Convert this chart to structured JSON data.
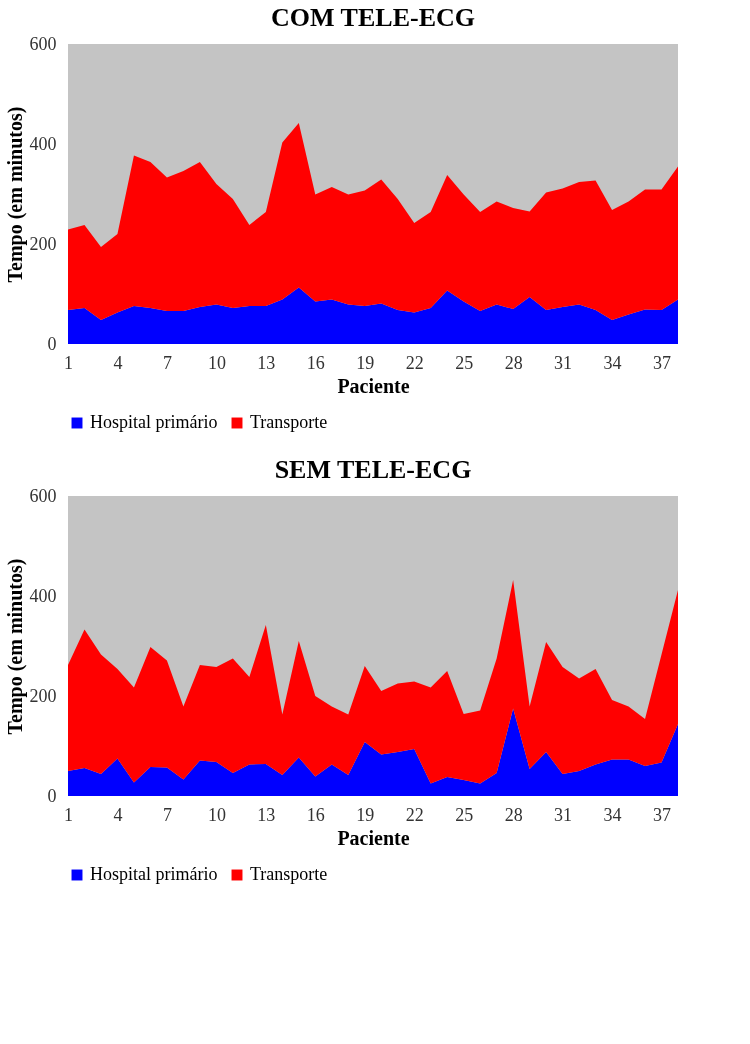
{
  "chart_data": [
    {
      "type": "area",
      "title": "COM TELE-ECG",
      "xlabel": "Paciente",
      "ylabel": "Tempo (em minutos)",
      "categories": [
        "1",
        null,
        null,
        "4",
        null,
        null,
        "7",
        null,
        null,
        "10",
        null,
        null,
        "13",
        null,
        null,
        "16",
        null,
        null,
        "19",
        null,
        null,
        "22",
        null,
        null,
        "25",
        null,
        null,
        "28",
        null,
        null,
        "31",
        null,
        null,
        "34",
        null,
        null,
        "37",
        null
      ],
      "stacked": true,
      "ylim": [
        0,
        600
      ],
      "yticks": [
        0,
        200,
        400,
        600
      ],
      "grid": false,
      "legend": "bottom",
      "series": [
        {
          "name": "Hospital primário",
          "color": "#0000ff",
          "values": [
            68,
            72,
            48,
            63,
            76,
            72,
            66,
            66,
            74,
            79,
            72,
            76,
            76,
            89,
            113,
            85,
            89,
            79,
            76,
            81,
            68,
            63,
            72,
            107,
            85,
            66,
            79,
            70,
            94,
            68,
            74,
            79,
            68,
            48,
            59,
            69,
            68,
            89
          ]
        },
        {
          "name": "Transporte",
          "color": "#ff0000",
          "values": [
            161,
            166,
            146,
            157,
            301,
            292,
            267,
            280,
            290,
            241,
            218,
            162,
            188,
            314,
            329,
            214,
            225,
            220,
            231,
            248,
            222,
            179,
            192,
            231,
            214,
            198,
            206,
            202,
            171,
            235,
            237,
            245,
            259,
            220,
            226,
            240,
            241,
            266
          ]
        }
      ]
    },
    {
      "type": "area",
      "title": "SEM TELE-ECG",
      "xlabel": "Paciente",
      "ylabel": "Tempo (em minutos)",
      "categories": [
        "1",
        null,
        null,
        "4",
        null,
        null,
        "7",
        null,
        null,
        "10",
        null,
        null,
        "13",
        null,
        null,
        "16",
        null,
        null,
        "19",
        null,
        null,
        "22",
        null,
        null,
        "25",
        null,
        null,
        "28",
        null,
        null,
        "31",
        null,
        null,
        "34",
        null,
        null,
        "37",
        null
      ],
      "stacked": true,
      "ylim": [
        0,
        600
      ],
      "yticks": [
        0,
        200,
        400,
        600
      ],
      "grid": false,
      "legend": "bottom",
      "series": [
        {
          "name": "Hospital primário",
          "color": "#0000ff",
          "values": [
            50,
            56,
            44,
            75,
            27,
            58,
            57,
            33,
            71,
            68,
            46,
            63,
            64,
            42,
            77,
            39,
            63,
            42,
            108,
            83,
            88,
            94,
            25,
            38,
            32,
            25,
            46,
            175,
            54,
            88,
            44,
            50,
            63,
            73,
            73,
            60,
            67,
            144
          ]
        },
        {
          "name": "Transporte",
          "color": "#ff0000",
          "values": [
            212,
            277,
            239,
            179,
            190,
            240,
            214,
            146,
            191,
            190,
            229,
            175,
            278,
            121,
            233,
            161,
            116,
            121,
            152,
            127,
            137,
            135,
            192,
            212,
            132,
            146,
            229,
            257,
            125,
            220,
            214,
            185,
            191,
            119,
            106,
            94,
            216,
            268
          ]
        }
      ]
    }
  ]
}
